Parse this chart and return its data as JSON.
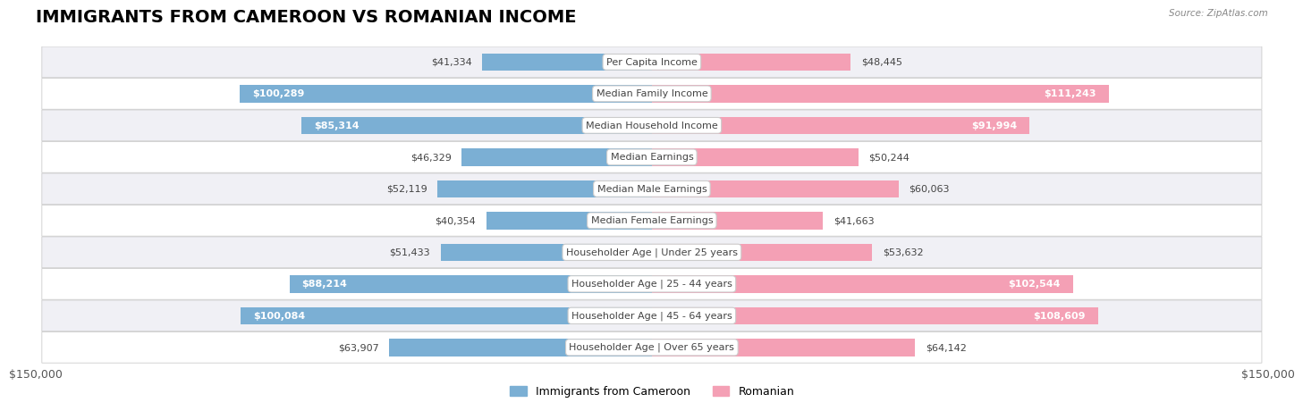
{
  "title": "IMMIGRANTS FROM CAMEROON VS ROMANIAN INCOME",
  "source": "Source: ZipAtlas.com",
  "categories": [
    "Per Capita Income",
    "Median Family Income",
    "Median Household Income",
    "Median Earnings",
    "Median Male Earnings",
    "Median Female Earnings",
    "Householder Age | Under 25 years",
    "Householder Age | 25 - 44 years",
    "Householder Age | 45 - 64 years",
    "Householder Age | Over 65 years"
  ],
  "cameroon_values": [
    41334,
    100289,
    85314,
    46329,
    52119,
    40354,
    51433,
    88214,
    100084,
    63907
  ],
  "romanian_values": [
    48445,
    111243,
    91994,
    50244,
    60063,
    41663,
    53632,
    102544,
    108609,
    64142
  ],
  "cameroon_color": "#7bafd4",
  "romanian_color": "#f4a0b5",
  "row_bg_even": "#f0f0f5",
  "row_bg_odd": "#ffffff",
  "max_value": 150000,
  "axis_label": "$150,000",
  "legend_cameroon": "Immigrants from Cameroon",
  "legend_romanian": "Romanian",
  "title_fontsize": 14,
  "label_fontsize": 8,
  "category_fontsize": 8,
  "bar_height": 0.55,
  "inside_threshold": 65000
}
